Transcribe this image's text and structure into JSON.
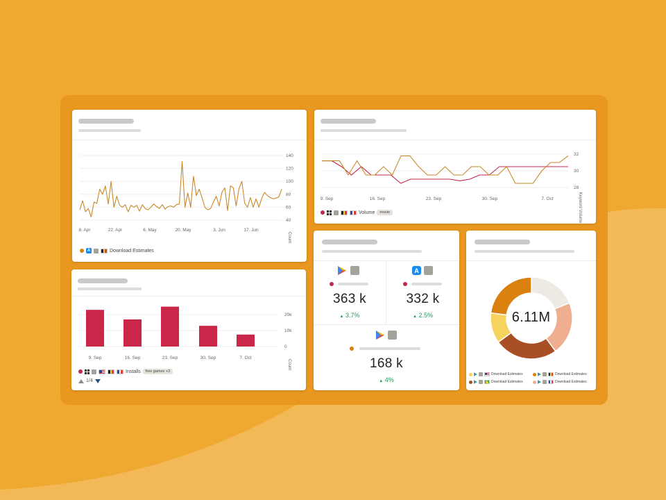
{
  "colors": {
    "bg": "#EFA931",
    "frame": "#E8971F",
    "line": "#C8882A",
    "line_red": "#C0284A",
    "bar": "#C9264A",
    "up": "#1E9A5B",
    "donut": [
      "#ECEAE3",
      "#EFAE8F",
      "#A84F26",
      "#F6D25E",
      "#D9800E"
    ]
  },
  "line_chart": {
    "legend_label": "Download Estimates",
    "chart_data": {
      "type": "line",
      "x_ticks": [
        "8. Apr",
        "22. Apr",
        "6. May",
        "20. May",
        "3. Jun",
        "17. Jun"
      ],
      "y_ticks": [
        "140",
        "120",
        "100",
        "80",
        "60",
        "40"
      ],
      "ylabel": "Count",
      "ylim": [
        40,
        140
      ],
      "series": [
        {
          "name": "Download Estimates",
          "values": [
            56,
            70,
            53,
            58,
            45,
            68,
            66,
            88,
            80,
            93,
            65,
            100,
            60,
            77,
            63,
            60,
            64,
            53,
            63,
            60,
            63,
            54,
            64,
            58,
            56,
            60,
            65,
            61,
            58,
            64,
            57,
            61,
            62,
            60,
            64,
            65,
            131,
            60,
            82,
            60,
            108,
            78,
            88,
            75,
            60,
            56,
            58,
            68,
            77,
            62,
            83,
            90,
            55,
            93,
            90,
            62,
            89,
            100,
            66,
            60,
            75,
            60,
            73,
            60,
            74,
            83,
            78,
            75,
            73,
            74,
            76,
            88
          ]
        }
      ]
    }
  },
  "dual_line_chart": {
    "legend_label": "Volume",
    "tag": "movie",
    "chart_data": {
      "type": "line",
      "x_ticks": [
        "9. Sep",
        "16. Sep",
        "23. Sep",
        "30. Sep",
        "7. Oct"
      ],
      "y_ticks": [
        "32",
        "30",
        "28"
      ],
      "ylabel": "Keyword Volume",
      "series": [
        {
          "values": [
            31.2,
            31.2,
            30.5,
            29.5,
            30.5,
            29.5,
            29.5,
            29.5,
            28.5,
            29,
            29,
            29,
            29,
            29,
            28.8,
            29,
            29.5,
            29.5,
            30.5,
            30.5,
            30.5,
            30.5,
            30.5,
            30.5,
            30.5,
            30.5
          ]
        },
        {
          "values": [
            31.2,
            31.2,
            31.2,
            29.5,
            31.2,
            29.5,
            29.5,
            30.5,
            29.5,
            31.8,
            31.8,
            30.5,
            29.5,
            29.5,
            30.5,
            29.5,
            29.5,
            30.5,
            30.5,
            29.5,
            29.5,
            30.5,
            28.5,
            28.5,
            28.5,
            30,
            31,
            31,
            31.8
          ]
        }
      ]
    }
  },
  "bar_chart": {
    "legend_label": "Installs",
    "tag": "free games +3",
    "pager": "1/4",
    "chart_data": {
      "type": "bar",
      "categories": [
        "9. Sep",
        "16. Sep",
        "23. Sep",
        "30. Sep",
        "7. Oct"
      ],
      "values": [
        23000,
        17000,
        25000,
        13000,
        7500
      ],
      "y_ticks": [
        "20k",
        "10k",
        "0"
      ],
      "ylabel": "Count",
      "ylim": [
        0,
        27000
      ]
    }
  },
  "kpis": {
    "kpi1": {
      "value": "363 k",
      "delta": "3.7%"
    },
    "kpi2": {
      "value": "332 k",
      "delta": "2.5%"
    },
    "kpi3": {
      "value": "168 k",
      "delta": "4%"
    }
  },
  "donut": {
    "total": "6.11M",
    "chart_data": {
      "type": "pie",
      "values": [
        19,
        21,
        25,
        12,
        23
      ]
    },
    "legend": [
      {
        "label": "Download Estimates",
        "dot": "#F6D25E"
      },
      {
        "label": "Download Estimates",
        "dot": "#D9800E"
      },
      {
        "label": "Download Estimates",
        "dot": "#A84F26"
      },
      {
        "label": "Download Estimates",
        "dot": "#EFAE8F"
      }
    ]
  }
}
